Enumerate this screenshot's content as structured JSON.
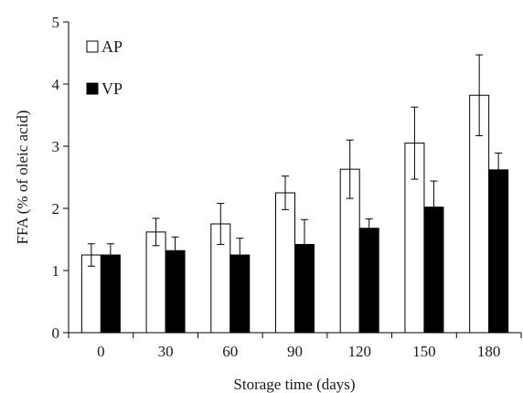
{
  "chart_data": {
    "type": "bar",
    "categories": [
      "0",
      "30",
      "60",
      "90",
      "120",
      "150",
      "180"
    ],
    "series": [
      {
        "name": "AP",
        "values": [
          1.25,
          1.62,
          1.75,
          2.25,
          2.63,
          3.05,
          3.82
        ],
        "errors": [
          0.18,
          0.22,
          0.33,
          0.27,
          0.47,
          0.58,
          0.65
        ],
        "fill": "#ffffff"
      },
      {
        "name": "VP",
        "values": [
          1.25,
          1.32,
          1.25,
          1.42,
          1.68,
          2.02,
          2.62
        ],
        "errors": [
          0.18,
          0.22,
          0.27,
          0.4,
          0.15,
          0.42,
          0.27
        ],
        "fill": "#000000"
      }
    ],
    "xlabel": "Storage  time  (days)",
    "ylabel": "FFA (% of oleic  acid)",
    "ylim": [
      0,
      5
    ],
    "yticks": [
      0,
      1,
      2,
      3,
      4,
      5
    ],
    "grid": false,
    "legend": "top-left"
  }
}
